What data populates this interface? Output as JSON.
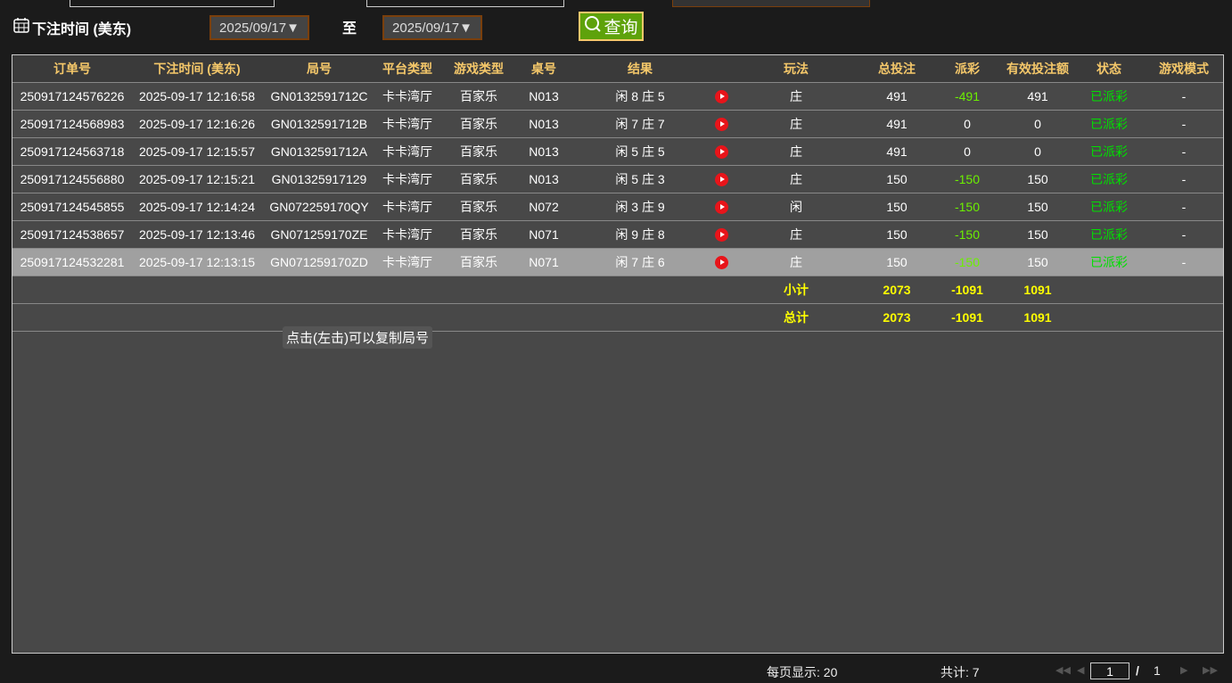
{
  "filter": {
    "label": "下注时间 (美东)",
    "start_date": "2025/09/17▼",
    "to_label": "至",
    "end_date": "2025/09/17▼",
    "query_label": "查询"
  },
  "table": {
    "headers": [
      "订单号",
      "下注时间 (美东)",
      "局号",
      "平台类型",
      "游戏类型",
      "桌号",
      "结果",
      "",
      "玩法",
      "总投注",
      "派彩",
      "有效投注额",
      "状态",
      "游戏模式"
    ],
    "rows": [
      [
        "250917124576226",
        "2025-09-17 12:16:58",
        "GN0132591712C",
        "卡卡湾厅",
        "百家乐",
        "N013",
        "闲 8 庄 5",
        "",
        "庄",
        "491",
        "-491",
        "491",
        "已派彩",
        "-"
      ],
      [
        "250917124568983",
        "2025-09-17 12:16:26",
        "GN0132591712B",
        "卡卡湾厅",
        "百家乐",
        "N013",
        "闲 7 庄 7",
        "",
        "庄",
        "491",
        "0",
        "0",
        "已派彩",
        "-"
      ],
      [
        "250917124563718",
        "2025-09-17 12:15:57",
        "GN0132591712A",
        "卡卡湾厅",
        "百家乐",
        "N013",
        "闲 5 庄 5",
        "",
        "庄",
        "491",
        "0",
        "0",
        "已派彩",
        "-"
      ],
      [
        "250917124556880",
        "2025-09-17 12:15:21",
        "GN01325917129",
        "卡卡湾厅",
        "百家乐",
        "N013",
        "闲 5 庄 3",
        "",
        "庄",
        "150",
        "-150",
        "150",
        "已派彩",
        "-"
      ],
      [
        "250917124545855",
        "2025-09-17 12:14:24",
        "GN072259170QY",
        "卡卡湾厅",
        "百家乐",
        "N072",
        "闲 3 庄 9",
        "",
        "闲",
        "150",
        "-150",
        "150",
        "已派彩",
        "-"
      ],
      [
        "250917124538657",
        "2025-09-17 12:13:46",
        "GN071259170ZE",
        "卡卡湾厅",
        "百家乐",
        "N071",
        "闲 9 庄 8",
        "",
        "庄",
        "150",
        "-150",
        "150",
        "已派彩",
        "-"
      ],
      [
        "250917124532281",
        "2025-09-17 12:13:15",
        "GN071259170ZD",
        "卡卡湾厅",
        "百家乐",
        "N071",
        "闲 7 庄 6",
        "",
        "庄",
        "150",
        "-150",
        "150",
        "已派彩",
        "-"
      ]
    ],
    "subtotal": {
      "label": "小计",
      "total_bet": "2073",
      "payout": "-1091",
      "valid_bet": "1091"
    },
    "total": {
      "label": "总计",
      "total_bet": "2073",
      "payout": "-1091",
      "valid_bet": "1091"
    }
  },
  "tooltip": "点击(左击)可以复制局号",
  "footer": {
    "per_page": "每页显示: 20",
    "count": "共计: 7",
    "page": "1",
    "slash": "/",
    "pages": "1"
  },
  "colors": {
    "header_text": "#f5c86a",
    "payout_negative": "#6cf000",
    "status": "#00e000",
    "query_button": "#5ea20b"
  }
}
